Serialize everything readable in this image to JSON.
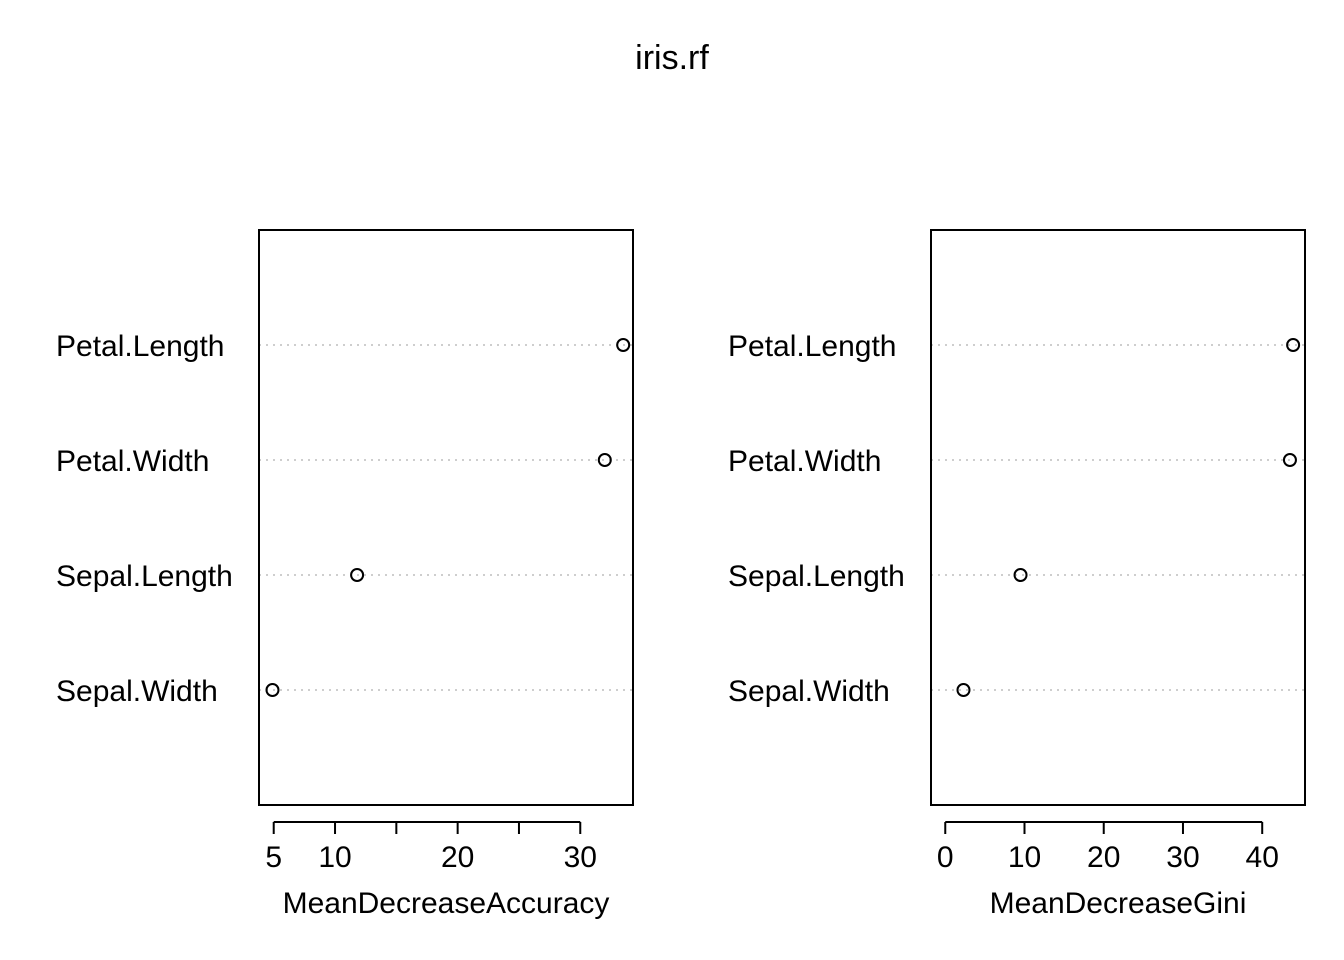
{
  "title": "iris.rf",
  "chart_data": [
    {
      "type": "scatter",
      "xlabel": "MeanDecreaseAccuracy",
      "ylabel": "",
      "categories": [
        "Petal.Length",
        "Petal.Width",
        "Sepal.Length",
        "Sepal.Width"
      ],
      "values": [
        33.5,
        32.0,
        11.8,
        4.9
      ],
      "xlim": [
        3.8,
        34.3
      ],
      "xticks": [
        5,
        10,
        15,
        20,
        25,
        30
      ],
      "xtick_labels": [
        "5",
        "10",
        "",
        "20",
        "",
        "30"
      ],
      "grid": "dotted horizontal lines per row",
      "marker": "open circle"
    },
    {
      "type": "scatter",
      "xlabel": "MeanDecreaseGini",
      "ylabel": "",
      "categories": [
        "Petal.Length",
        "Petal.Width",
        "Sepal.Length",
        "Sepal.Width"
      ],
      "values": [
        43.9,
        43.5,
        9.5,
        2.3
      ],
      "xlim": [
        -1.8,
        45.4
      ],
      "xticks": [
        0,
        10,
        20,
        30,
        40
      ],
      "xtick_labels": [
        "0",
        "10",
        "20",
        "30",
        "40"
      ],
      "grid": "dotted horizontal lines per row",
      "marker": "open circle"
    }
  ]
}
